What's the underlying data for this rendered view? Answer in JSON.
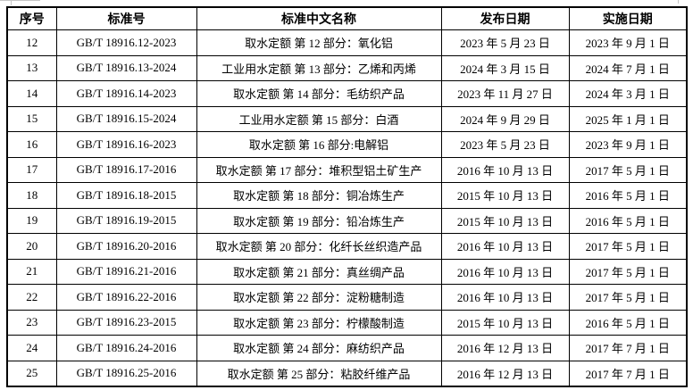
{
  "table": {
    "headers": [
      "序号",
      "标准号",
      "标准中文名称",
      "发布日期",
      "实施日期"
    ],
    "column_keys": [
      "no",
      "standard_no",
      "name_cn",
      "publish_date",
      "implement_date"
    ],
    "rows": [
      {
        "no": "12",
        "standard_no": "GB/T 18916.12-2023",
        "name_cn": "取水定额 第 12 部分：氧化铝",
        "publish_date": "2023 年 5 月 23 日",
        "implement_date": "2023 年 9 月 1 日"
      },
      {
        "no": "13",
        "standard_no": "GB/T 18916.13-2024",
        "name_cn": "工业用水定额 第 13 部分：乙烯和丙烯",
        "publish_date": "2024 年 3 月 15 日",
        "implement_date": "2024 年 7 月 1 日"
      },
      {
        "no": "14",
        "standard_no": "GB/T 18916.14-2023",
        "name_cn": "取水定额 第 14 部分：毛纺织产品",
        "publish_date": "2023 年 11 月 27 日",
        "implement_date": "2024 年 3 月 1 日"
      },
      {
        "no": "15",
        "standard_no": "GB/T 18916.15-2024",
        "name_cn": "工业用水定额 第 15 部分：白酒",
        "publish_date": "2024 年 9 月 29 日",
        "implement_date": "2025 年 1 月 1 日"
      },
      {
        "no": "16",
        "standard_no": "GB/T 18916.16-2023",
        "name_cn": "取水定额 第 16 部分:电解铝",
        "publish_date": "2023 年 5 月 23 日",
        "implement_date": "2023 年 9 月 1 日"
      },
      {
        "no": "17",
        "standard_no": "GB/T 18916.17-2016",
        "name_cn": "取水定额 第 17 部分：堆积型铝土矿生产",
        "publish_date": "2016 年 10 月 13 日",
        "implement_date": "2017 年 5 月 1 日"
      },
      {
        "no": "18",
        "standard_no": "GB/T 18916.18-2015",
        "name_cn": "取水定额 第 18 部分：铜冶炼生产",
        "publish_date": "2015 年 10 月 13 日",
        "implement_date": "2016 年 5 月 1 日"
      },
      {
        "no": "19",
        "standard_no": "GB/T 18916.19-2015",
        "name_cn": "取水定额 第 19 部分：铅冶炼生产",
        "publish_date": "2015 年 10 月 13 日",
        "implement_date": "2016 年 5 月 1 日"
      },
      {
        "no": "20",
        "standard_no": "GB/T 18916.20-2016",
        "name_cn": "取水定额 第 20 部分：化纤长丝织造产品",
        "publish_date": "2016 年 10 月 13 日",
        "implement_date": "2017 年 5 月 1 日"
      },
      {
        "no": "21",
        "standard_no": "GB/T 18916.21-2016",
        "name_cn": "取水定额 第 21 部分：真丝绸产品",
        "publish_date": "2016 年 10 月 13 日",
        "implement_date": "2017 年 5 月 1 日"
      },
      {
        "no": "22",
        "standard_no": "GB/T 18916.22-2016",
        "name_cn": "取水定额 第 22 部分：淀粉糖制造",
        "publish_date": "2016 年 10 月 13 日",
        "implement_date": "2017 年 5 月 1 日"
      },
      {
        "no": "23",
        "standard_no": "GB/T 18916.23-2015",
        "name_cn": "取水定额 第 23 部分：柠檬酸制造",
        "publish_date": "2015 年 10 月 13 日",
        "implement_date": "2016 年 5 月 1 日"
      },
      {
        "no": "24",
        "standard_no": "GB/T 18916.24-2016",
        "name_cn": "取水定额 第 24 部分：麻纺织产品",
        "publish_date": "2016 年 12 月 13 日",
        "implement_date": "2017 年 7 月 1 日"
      },
      {
        "no": "25",
        "standard_no": "GB/T 18916.25-2016",
        "name_cn": "取水定额 第 25 部分：粘胶纤维产品",
        "publish_date": "2016 年 12 月 13 日",
        "implement_date": "2017 年 7 月 1 日"
      }
    ]
  }
}
